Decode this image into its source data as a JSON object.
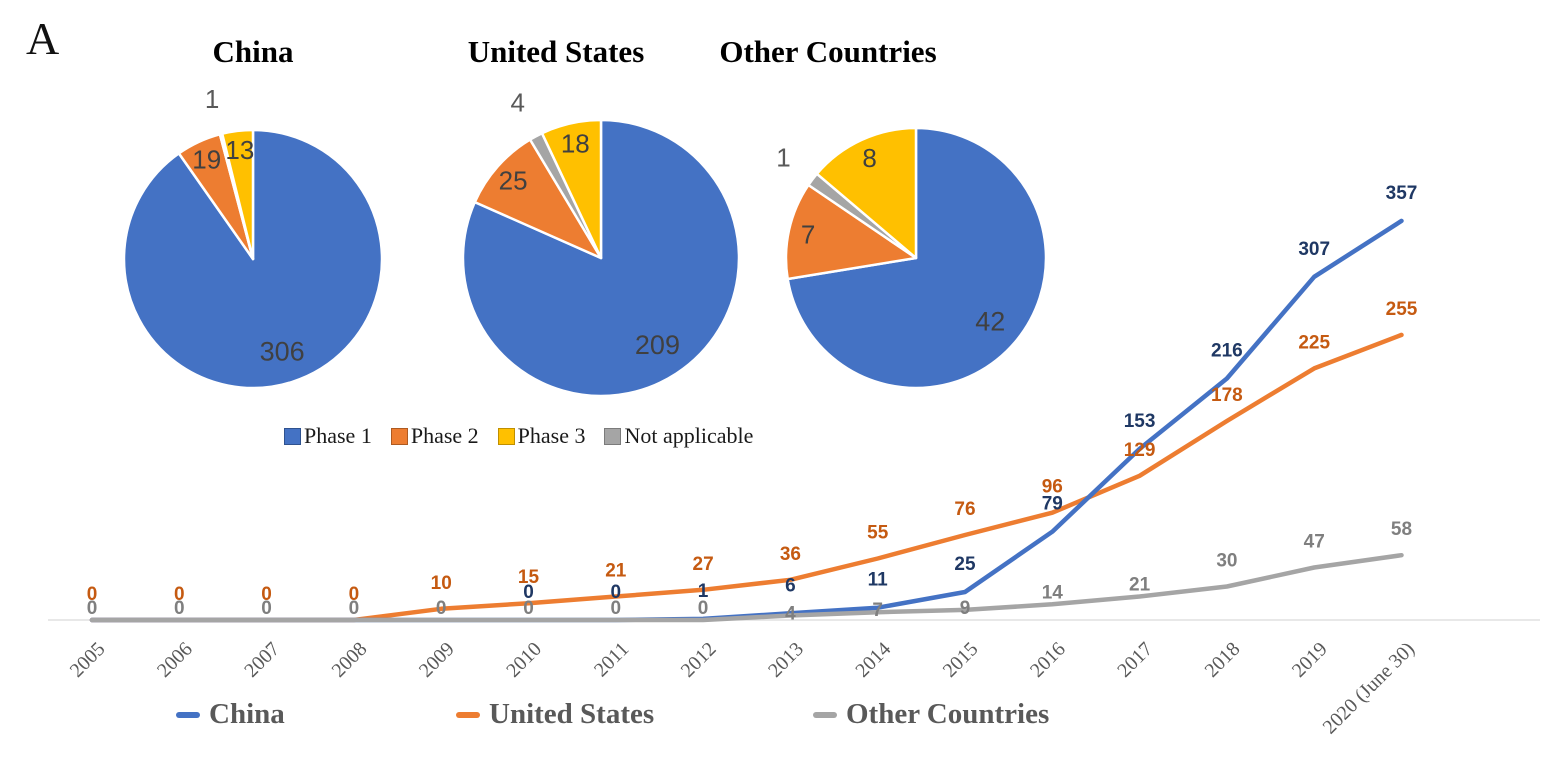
{
  "panel_label": "A",
  "colors": {
    "phase1": "#4472C4",
    "phase2": "#ED7D31",
    "phase3": "#FFC000",
    "not_applicable": "#A5A5A5",
    "china_line": "#4472C4",
    "us_line": "#ED7D31",
    "other_line": "#A5A5A5",
    "china_label": "#1F3864",
    "us_label": "#C55A11",
    "other_label": "#7F7F7F",
    "pie_value_label": "#404040",
    "outside_value_label": "#595959",
    "axis_line": "#D9D9D9",
    "year_label": "#595959",
    "legend_text": "#595959"
  },
  "pie_legend": {
    "items": [
      {
        "label": "Phase 1",
        "color": "#4472C4",
        "border": "#2F528F"
      },
      {
        "label": "Phase 2",
        "color": "#ED7D31",
        "border": "#AE5A21"
      },
      {
        "label": "Phase 3",
        "color": "#FFC000",
        "border": "#BF8F00"
      },
      {
        "label": "Not applicable",
        "color": "#A5A5A5",
        "border": "#7B7B7B"
      }
    ]
  },
  "line_legend": {
    "items": [
      {
        "label": "China",
        "color": "#4472C4"
      },
      {
        "label": "United States",
        "color": "#ED7D31"
      },
      {
        "label": "Other Countries",
        "color": "#A5A5A5"
      }
    ]
  },
  "chart_data": [
    {
      "type": "pie",
      "title": "China",
      "slices": [
        {
          "label": "Phase 1",
          "value": 306
        },
        {
          "label": "Phase 2",
          "value": 19
        },
        {
          "label": "Phase 3",
          "value": 13
        },
        {
          "label": "Not applicable",
          "value": 1
        }
      ]
    },
    {
      "type": "pie",
      "title": "United States",
      "slices": [
        {
          "label": "Phase 1",
          "value": 209
        },
        {
          "label": "Phase 2",
          "value": 25
        },
        {
          "label": "Phase 3",
          "value": 18
        },
        {
          "label": "Not applicable",
          "value": 4
        }
      ]
    },
    {
      "type": "pie",
      "title": "Other Countries",
      "slices": [
        {
          "label": "Phase 1",
          "value": 42
        },
        {
          "label": "Phase 2",
          "value": 7
        },
        {
          "label": "Phase 3",
          "value": 8
        },
        {
          "label": "Not applicable",
          "value": 1
        }
      ]
    },
    {
      "type": "line",
      "x": [
        "2005",
        "2006",
        "2007",
        "2008",
        "2009",
        "2010",
        "2011",
        "2012",
        "2013",
        "2014",
        "2015",
        "2016",
        "2017",
        "2018",
        "2019",
        "2020 (June 30)"
      ],
      "series": [
        {
          "name": "China",
          "values": [
            0,
            0,
            0,
            0,
            0,
            0,
            0,
            1,
            6,
            11,
            25,
            79,
            153,
            216,
            307,
            357
          ],
          "labels_shown_from_index": 5
        },
        {
          "name": "United States",
          "values": [
            0,
            0,
            0,
            0,
            10,
            15,
            21,
            27,
            36,
            55,
            76,
            96,
            129,
            178,
            225,
            255
          ]
        },
        {
          "name": "Other Countries",
          "values": [
            0,
            0,
            0,
            0,
            0,
            0,
            0,
            0,
            4,
            7,
            9,
            14,
            21,
            30,
            47,
            58
          ]
        }
      ],
      "ylim": [
        0,
        400
      ],
      "grid": false,
      "legend_position": "bottom",
      "data_labels": true
    }
  ]
}
